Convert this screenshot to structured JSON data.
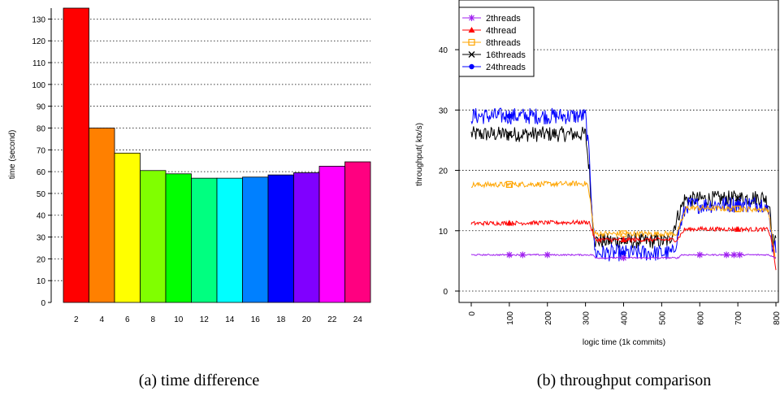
{
  "chart_data": [
    {
      "type": "bar",
      "caption": "(a)  time difference",
      "ylabel": "time (second)",
      "xlabel": "",
      "ylim": [
        0,
        135
      ],
      "yticks": [
        0,
        10,
        20,
        30,
        40,
        50,
        60,
        70,
        80,
        90,
        100,
        110,
        120,
        130
      ],
      "grid": "horizontal dotted",
      "categories": [
        "2",
        "4",
        "6",
        "8",
        "10",
        "12",
        "14",
        "16",
        "18",
        "20",
        "22",
        "24"
      ],
      "values": [
        135,
        80,
        68.5,
        60.5,
        59,
        57,
        57,
        57.5,
        58.5,
        59.5,
        62.5,
        64.5
      ],
      "colors": [
        "#ff0000",
        "#ff8000",
        "#ffff00",
        "#80ff00",
        "#00ff00",
        "#00ff80",
        "#00ffff",
        "#0080ff",
        "#0000ff",
        "#8000ff",
        "#ff00ff",
        "#ff0080"
      ]
    },
    {
      "type": "line",
      "caption": "(b)  throughput comparison",
      "xlabel": "logic time (1k commits)",
      "ylabel": "throughput( ktx/s)",
      "xlim": [
        0,
        800
      ],
      "ylim": [
        0,
        45
      ],
      "xticks": [
        0,
        100,
        200,
        300,
        400,
        500,
        600,
        700,
        800
      ],
      "yticks": [
        0,
        10,
        20,
        30,
        40
      ],
      "grid": "horizontal dotted",
      "legend_position": "top-left",
      "series": [
        {
          "name": "2threads",
          "color": "#a020f0",
          "marker": "asterisk",
          "points": [
            [
              0,
              6
            ],
            [
              320,
              6
            ],
            [
              325,
              5.5
            ],
            [
              545,
              5.5
            ],
            [
              550,
              6
            ],
            [
              780,
              6
            ],
            [
              790,
              5.8
            ],
            [
              800,
              5.5
            ]
          ],
          "marker_x": [
            100,
            135,
            200,
            400,
            600,
            670,
            690,
            705
          ]
        },
        {
          "name": "4thread",
          "color": "#ff0000",
          "marker": "triangle",
          "points": [
            [
              0,
              11.2
            ],
            [
              310,
              11.4
            ],
            [
              325,
              8.5
            ],
            [
              540,
              8.5
            ],
            [
              560,
              10.2
            ],
            [
              600,
              10.3
            ],
            [
              780,
              10.2
            ],
            [
              790,
              8
            ],
            [
              800,
              3.5
            ]
          ],
          "marker_x": [
            100,
            400,
            700
          ]
        },
        {
          "name": "8threads",
          "color": "#ffa500",
          "marker": "square",
          "points": [
            [
              0,
              17.6
            ],
            [
              305,
              17.8
            ],
            [
              315,
              14
            ],
            [
              322,
              9.5
            ],
            [
              540,
              9.5
            ],
            [
              555,
              12
            ],
            [
              565,
              13.8
            ],
            [
              780,
              13.5
            ],
            [
              790,
              9
            ],
            [
              800,
              5
            ]
          ],
          "marker_x": [
            100,
            400,
            700
          ]
        },
        {
          "name": "16threads",
          "color": "#000000",
          "marker": "cross",
          "points": [
            [
              0,
              26
            ],
            [
              300,
              26
            ],
            [
              310,
              20
            ],
            [
              318,
              12
            ],
            [
              325,
              8.3
            ],
            [
              520,
              8.3
            ],
            [
              540,
              12
            ],
            [
              560,
              15.2
            ],
            [
              770,
              15.5
            ],
            [
              785,
              14
            ],
            [
              790,
              8.5
            ],
            [
              800,
              8
            ]
          ],
          "marker_x": [
            100,
            400,
            700
          ]
        },
        {
          "name": "24threads",
          "color": "#0000ff",
          "marker": "dot",
          "points": [
            [
              0,
              29
            ],
            [
              300,
              29
            ],
            [
              310,
              22
            ],
            [
              318,
              13
            ],
            [
              325,
              6.3
            ],
            [
              530,
              6.3
            ],
            [
              545,
              10
            ],
            [
              565,
              14.2
            ],
            [
              770,
              14.5
            ],
            [
              785,
              12
            ],
            [
              790,
              7.5
            ],
            [
              800,
              7
            ]
          ],
          "marker_x": [
            100,
            400,
            700
          ]
        }
      ]
    }
  ]
}
